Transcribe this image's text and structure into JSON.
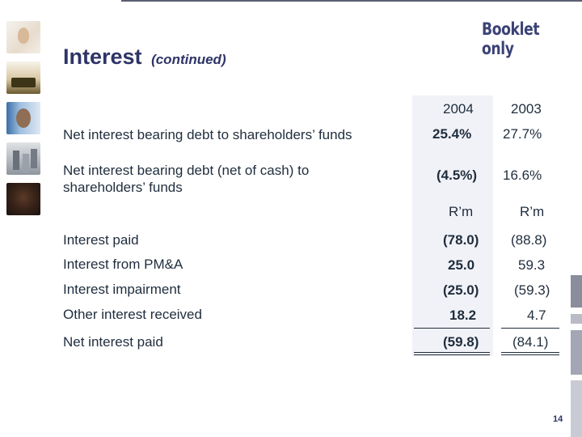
{
  "badge": "Booklet only",
  "title": {
    "main": "Interest",
    "sub": "(continued)"
  },
  "headers": {
    "col2004": "2004",
    "col2003": "2003"
  },
  "ratios": [
    {
      "label": "Net interest bearing debt to shareholders’ funds",
      "v2004": "25.4%",
      "v2003": "27.7%"
    },
    {
      "label": "Net interest bearing debt (net of cash) to shareholders’ funds",
      "v2004": "(4.5%)",
      "v2003": "16.6%"
    }
  ],
  "units": {
    "u2004": "R’m",
    "u2003": "R’m"
  },
  "rows": [
    {
      "label": "Interest paid",
      "v2004": "(78.0)",
      "v2003": "(88.8)"
    },
    {
      "label": "Interest from PM&A",
      "v2004": "25.0",
      "v2003": "59.3"
    },
    {
      "label": "Interest impairment",
      "v2004": "(25.0)",
      "v2003": "(59.3)"
    },
    {
      "label": "Other interest received",
      "v2004": "18.2",
      "v2003": "4.7"
    },
    {
      "label": "Net interest paid",
      "v2004": "(59.8)",
      "v2003": "(84.1)"
    }
  ],
  "page_number": "14"
}
